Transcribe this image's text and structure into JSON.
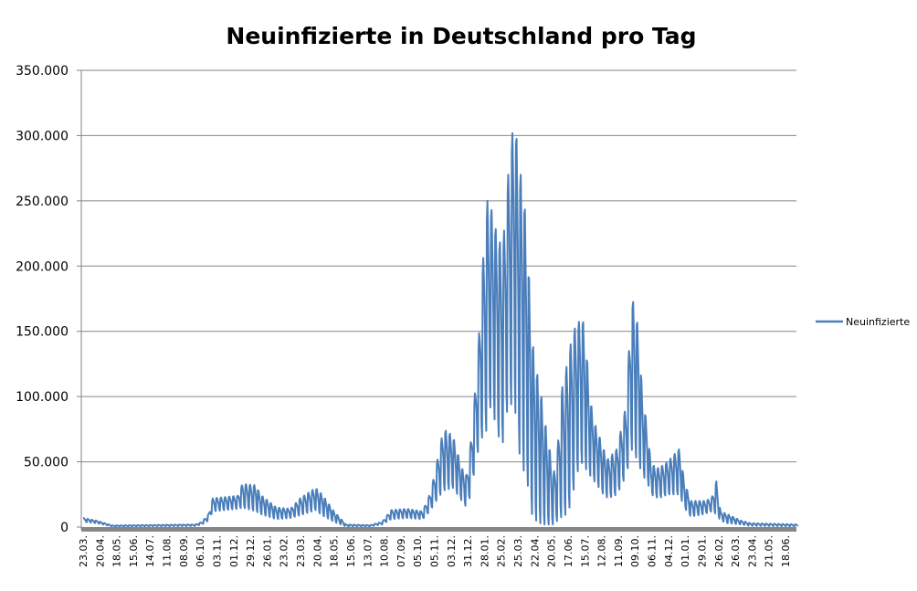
{
  "chart_data": {
    "type": "line",
    "title": "Neuinfizierte in Deutschland pro Tag",
    "xlabel": "",
    "ylabel": "",
    "ylim": [
      0,
      350000
    ],
    "yticks": [
      0,
      50000,
      100000,
      150000,
      200000,
      250000,
      300000,
      350000
    ],
    "ytick_labels": [
      "0",
      "50.000",
      "100.000",
      "150.000",
      "200.000",
      "250.000",
      "300.000",
      "350.000"
    ],
    "grid": true,
    "legend_position": "right",
    "series_color": "#4A7EBB",
    "xtick_labels": [
      "23.03.",
      "20.04.",
      "18.05.",
      "15.06.",
      "14.07.",
      "11.08.",
      "08.09.",
      "06.10.",
      "03.11.",
      "01.12.",
      "29.12.",
      "26.01.",
      "23.02.",
      "23.03.",
      "20.04.",
      "18.05.",
      "15.06.",
      "13.07.",
      "10.08.",
      "07.09.",
      "05.10.",
      "05.11.",
      "03.12.",
      "31.12.",
      "28.01.",
      "25.02.",
      "25.03.",
      "22.04.",
      "20.05.",
      "17.06.",
      "15.07.",
      "12.08.",
      "11.09.",
      "09.10.",
      "06.11.",
      "04.12.",
      "01.01.",
      "29.01.",
      "26.02.",
      "26.03.",
      "23.04.",
      "21.05.",
      "18.06."
    ],
    "x_unit": "days since first tick (23.03.)",
    "x_range_days": [
      0,
      1202
    ],
    "series": [
      {
        "name": "Neuinfizierte",
        "note": "daily values with weekly reporting cycle; envelope in thousands as [day, weekly_high, weekly_low]",
        "weekly_cycle": [
          0.95,
          1,
          0.85,
          0.7,
          0.5,
          0.1,
          0
        ],
        "envelope": [
          [
            0,
            7,
            4
          ],
          [
            22,
            5,
            3
          ],
          [
            49,
            1.2,
            0.5
          ],
          [
            189,
            2,
            0.8
          ],
          [
            200,
            4,
            2
          ],
          [
            211,
            10,
            5
          ],
          [
            218,
            22,
            12
          ],
          [
            260,
            24,
            14
          ],
          [
            268,
            33,
            15
          ],
          [
            291,
            32,
            12
          ],
          [
            298,
            25,
            10
          ],
          [
            325,
            15,
            6
          ],
          [
            349,
            14,
            7
          ],
          [
            365,
            22,
            9
          ],
          [
            391,
            30,
            13
          ],
          [
            402,
            25,
            9
          ],
          [
            422,
            12,
            4
          ],
          [
            442,
            2,
            0.5
          ],
          [
            483,
            1.5,
            0.5
          ],
          [
            503,
            4,
            2
          ],
          [
            518,
            13,
            6
          ],
          [
            545,
            14,
            7
          ],
          [
            571,
            12,
            6
          ],
          [
            583,
            25,
            12
          ],
          [
            591,
            40,
            18
          ],
          [
            606,
            75,
            28
          ],
          [
            622,
            70,
            30
          ],
          [
            637,
            45,
            20
          ],
          [
            645,
            40,
            15
          ],
          [
            652,
            65,
            25
          ],
          [
            657,
            90,
            40
          ],
          [
            665,
            140,
            60
          ],
          [
            672,
            200,
            70
          ],
          [
            680,
            250,
            75
          ],
          [
            686,
            245,
            95
          ],
          [
            698,
            220,
            70
          ],
          [
            706,
            215,
            65
          ],
          [
            715,
            270,
            95
          ],
          [
            726,
            320,
            93
          ],
          [
            732,
            275,
            60
          ],
          [
            740,
            265,
            45
          ],
          [
            749,
            200,
            30
          ],
          [
            755,
            145,
            10
          ],
          [
            762,
            120,
            5
          ],
          [
            768,
            110,
            3
          ],
          [
            775,
            85,
            2
          ],
          [
            783,
            65,
            2
          ],
          [
            791,
            40,
            2
          ],
          [
            798,
            60,
            5
          ],
          [
            805,
            105,
            8
          ],
          [
            814,
            125,
            10
          ],
          [
            822,
            145,
            20
          ],
          [
            829,
            155,
            40
          ],
          [
            840,
            160,
            50
          ],
          [
            845,
            145,
            45
          ],
          [
            852,
            100,
            40
          ],
          [
            860,
            80,
            35
          ],
          [
            868,
            70,
            30
          ],
          [
            875,
            60,
            25
          ],
          [
            883,
            52,
            22
          ],
          [
            898,
            60,
            25
          ],
          [
            914,
            95,
            40
          ],
          [
            922,
            175,
            60
          ],
          [
            928,
            170,
            55
          ],
          [
            934,
            150,
            50
          ],
          [
            940,
            105,
            40
          ],
          [
            949,
            75,
            35
          ],
          [
            955,
            48,
            25
          ],
          [
            968,
            45,
            22
          ],
          [
            983,
            50,
            25
          ],
          [
            1003,
            60,
            25
          ],
          [
            1011,
            35,
            15
          ],
          [
            1022,
            20,
            8
          ],
          [
            1045,
            20,
            10
          ],
          [
            1057,
            22,
            12
          ],
          [
            1065,
            35,
            10
          ],
          [
            1072,
            12,
            5
          ],
          [
            1083,
            10,
            3
          ],
          [
            1106,
            5,
            2
          ],
          [
            1122,
            3,
            1
          ],
          [
            1202,
            2,
            0.5
          ]
        ]
      }
    ]
  }
}
